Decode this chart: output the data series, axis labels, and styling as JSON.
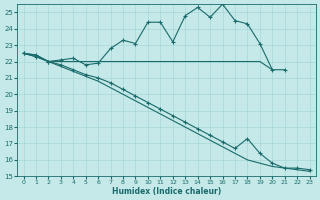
{
  "xlabel": "Humidex (Indice chaleur)",
  "bg_color": "#c5e8e8",
  "line_color": "#1a6b6b",
  "grid_color": "#a8d8d8",
  "xlim": [
    -0.5,
    23.5
  ],
  "ylim": [
    15,
    25.5
  ],
  "yticks": [
    15,
    16,
    17,
    18,
    19,
    20,
    21,
    22,
    23,
    24,
    25
  ],
  "xticks": [
    0,
    1,
    2,
    3,
    4,
    5,
    6,
    7,
    8,
    9,
    10,
    11,
    12,
    13,
    14,
    15,
    16,
    17,
    18,
    19,
    20,
    21,
    22,
    23
  ],
  "line1_x": [
    0,
    1,
    2,
    3,
    4,
    5,
    6,
    7,
    8,
    9,
    10,
    11,
    12,
    13,
    14,
    15,
    16,
    17,
    18,
    19,
    20,
    21
  ],
  "line1_y": [
    22.5,
    22.4,
    22.0,
    22.1,
    22.2,
    21.8,
    21.9,
    22.8,
    23.3,
    23.1,
    24.4,
    24.4,
    23.2,
    24.8,
    25.3,
    24.7,
    25.5,
    24.5,
    24.3,
    23.1,
    21.5,
    21.5
  ],
  "line2_x": [
    0,
    1,
    2,
    3,
    4,
    5,
    6,
    7,
    8,
    9,
    10,
    11,
    12,
    13,
    14,
    15,
    16,
    17,
    18,
    19,
    20
  ],
  "line2_y": [
    22.5,
    22.4,
    22.0,
    22.0,
    22.0,
    22.0,
    22.0,
    22.0,
    22.0,
    22.0,
    22.0,
    22.0,
    22.0,
    22.0,
    22.0,
    22.0,
    22.0,
    22.0,
    22.0,
    22.0,
    21.5
  ],
  "line3_x": [
    0,
    1,
    2,
    3,
    4,
    5,
    6,
    7,
    8,
    9,
    10,
    11,
    12,
    13,
    14,
    15,
    16,
    17,
    18,
    19,
    20,
    21,
    22,
    23
  ],
  "line3_y": [
    22.5,
    22.3,
    22.0,
    21.8,
    21.5,
    21.2,
    21.0,
    20.7,
    20.3,
    19.9,
    19.5,
    19.1,
    18.7,
    18.3,
    17.9,
    17.5,
    17.1,
    16.7,
    17.3,
    16.4,
    15.8,
    15.5,
    15.5,
    15.4
  ],
  "line4_x": [
    0,
    1,
    2,
    3,
    4,
    5,
    6,
    7,
    8,
    9,
    10,
    11,
    12,
    13,
    14,
    15,
    16,
    17,
    18,
    19,
    20,
    21,
    22,
    23
  ],
  "line4_y": [
    22.5,
    22.3,
    22.0,
    21.7,
    21.4,
    21.1,
    20.8,
    20.4,
    20.0,
    19.6,
    19.2,
    18.8,
    18.4,
    18.0,
    17.6,
    17.2,
    16.8,
    16.4,
    16.0,
    15.8,
    15.6,
    15.5,
    15.4,
    15.3
  ]
}
